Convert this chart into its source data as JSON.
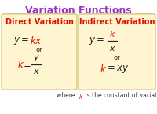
{
  "title": "Variation Functions",
  "title_color": "#9933CC",
  "bg_color": "#FFFFFF",
  "box_color": "#FFF5D0",
  "box_edge_color": "#D4C870",
  "left_header": "Direct Variation",
  "right_header": "Indirect Variation",
  "header_color": "#DD1100",
  "black": "#222222",
  "red": "#DD1100",
  "footer_color": "#333333",
  "footer_k_color": "#DD1100"
}
